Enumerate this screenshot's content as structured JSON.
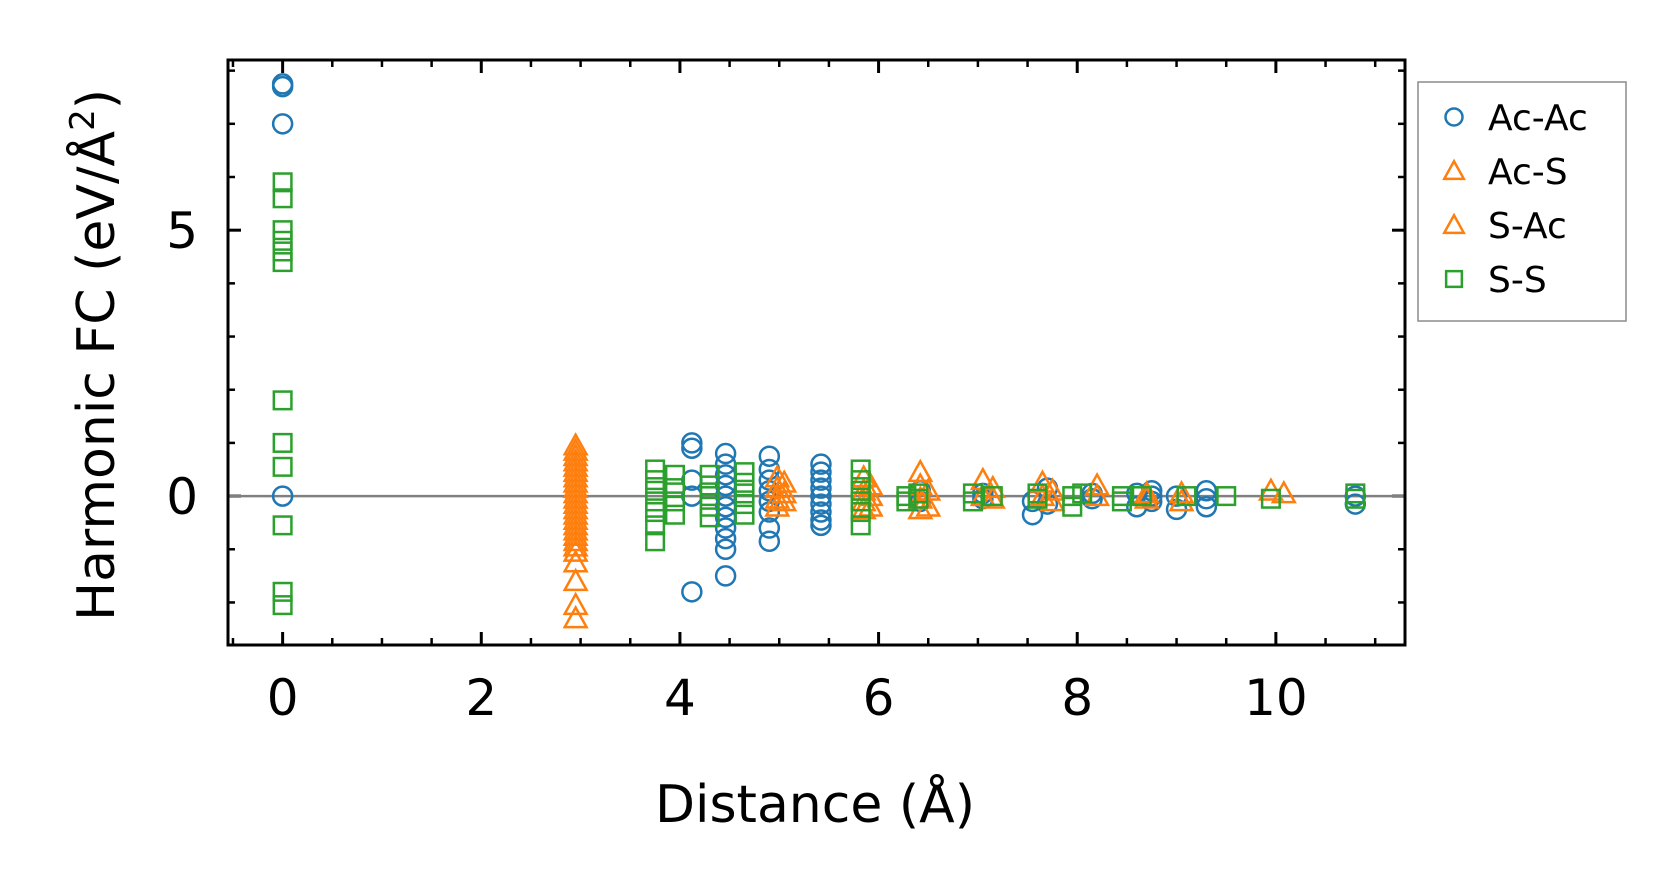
{
  "chart_data": {
    "type": "scatter",
    "title": "",
    "xlabel": "Distance (Å)",
    "ylabel": "Harmonic FC (eV/Å²)",
    "ylabel_main": "Harmonic FC (eV/Å",
    "ylabel_sup": "2",
    "ylabel_close": ")",
    "xlim": [
      -0.55,
      11.3
    ],
    "ylim": [
      -2.8,
      8.2
    ],
    "xticks": [
      0,
      2,
      4,
      6,
      8,
      10
    ],
    "xtick_labels": [
      "0",
      "2",
      "4",
      "6",
      "8",
      "10"
    ],
    "yticks": [
      0,
      5
    ],
    "ytick_labels": [
      "0",
      "5"
    ],
    "reference_line": 0,
    "legend_position": "outside-right-top",
    "series": [
      {
        "name": "Ac-Ac",
        "marker": "circle",
        "color": "#1f77b4",
        "points": [
          [
            0,
            7.75
          ],
          [
            0,
            7.7
          ],
          [
            0,
            7.0
          ],
          [
            0,
            0.0
          ],
          [
            4.12,
            1.0
          ],
          [
            4.12,
            0.9
          ],
          [
            4.12,
            0.3
          ],
          [
            4.12,
            0.0
          ],
          [
            4.12,
            -1.8
          ],
          [
            4.46,
            0.8
          ],
          [
            4.46,
            0.6
          ],
          [
            4.46,
            0.4
          ],
          [
            4.46,
            0.2
          ],
          [
            4.46,
            0.0
          ],
          [
            4.46,
            -0.2
          ],
          [
            4.46,
            -0.4
          ],
          [
            4.46,
            -0.6
          ],
          [
            4.46,
            -0.8
          ],
          [
            4.46,
            -1.0
          ],
          [
            4.46,
            -1.5
          ],
          [
            4.9,
            0.75
          ],
          [
            4.9,
            0.5
          ],
          [
            4.9,
            0.3
          ],
          [
            4.9,
            0.1
          ],
          [
            4.9,
            -0.1
          ],
          [
            4.9,
            -0.3
          ],
          [
            4.9,
            -0.6
          ],
          [
            4.9,
            -0.85
          ],
          [
            5.42,
            0.6
          ],
          [
            5.42,
            0.45
          ],
          [
            5.42,
            0.3
          ],
          [
            5.42,
            0.15
          ],
          [
            5.42,
            0.0
          ],
          [
            5.42,
            -0.15
          ],
          [
            5.42,
            -0.3
          ],
          [
            5.42,
            -0.45
          ],
          [
            5.42,
            -0.55
          ],
          [
            6.42,
            0.1
          ],
          [
            6.42,
            -0.1
          ],
          [
            7.05,
            0.05
          ],
          [
            7.05,
            -0.05
          ],
          [
            7.55,
            -0.1
          ],
          [
            7.55,
            -0.35
          ],
          [
            7.7,
            0.15
          ],
          [
            7.7,
            -0.15
          ],
          [
            8.15,
            0.05
          ],
          [
            8.15,
            -0.05
          ],
          [
            8.6,
            0.05
          ],
          [
            8.6,
            -0.2
          ],
          [
            8.75,
            0.1
          ],
          [
            8.75,
            0.0
          ],
          [
            8.75,
            -0.1
          ],
          [
            9.0,
            0.0
          ],
          [
            9.0,
            -0.25
          ],
          [
            9.3,
            0.1
          ],
          [
            9.3,
            -0.05
          ],
          [
            9.3,
            -0.2
          ],
          [
            10.8,
            0.0
          ],
          [
            10.8,
            -0.15
          ]
        ]
      },
      {
        "name": "Ac-S",
        "marker": "triangle",
        "color": "#ff7f0e",
        "points": [
          [
            2.95,
            0.95
          ],
          [
            2.95,
            0.75
          ],
          [
            2.95,
            0.55
          ],
          [
            2.95,
            0.35
          ],
          [
            2.95,
            0.15
          ],
          [
            2.95,
            -0.05
          ],
          [
            2.95,
            -0.25
          ],
          [
            2.95,
            -0.45
          ],
          [
            2.95,
            -0.65
          ],
          [
            2.95,
            -0.85
          ],
          [
            2.95,
            -1.05
          ],
          [
            2.95,
            -1.25
          ],
          [
            4.98,
            0.35
          ],
          [
            4.98,
            0.15
          ],
          [
            4.98,
            -0.05
          ],
          [
            4.98,
            -0.2
          ],
          [
            5.85,
            0.35
          ],
          [
            5.85,
            0.1
          ],
          [
            5.85,
            -0.1
          ],
          [
            5.85,
            -0.25
          ],
          [
            6.42,
            0.45
          ],
          [
            6.42,
            0.2
          ],
          [
            6.42,
            -0.05
          ],
          [
            6.42,
            -0.25
          ],
          [
            7.05,
            0.3
          ],
          [
            7.05,
            0.0
          ],
          [
            7.65,
            0.25
          ],
          [
            7.65,
            0.0
          ],
          [
            8.2,
            0.2
          ],
          [
            8.2,
            0.0
          ],
          [
            8.7,
            0.05
          ],
          [
            8.7,
            -0.05
          ],
          [
            9.95,
            0.1
          ],
          [
            10.08,
            0.05
          ]
        ]
      },
      {
        "name": "S-Ac",
        "marker": "triangle",
        "color": "#ff7f0e",
        "points": [
          [
            2.95,
            0.85
          ],
          [
            2.95,
            0.65
          ],
          [
            2.95,
            0.45
          ],
          [
            2.95,
            0.25
          ],
          [
            2.95,
            0.05
          ],
          [
            2.95,
            -0.15
          ],
          [
            2.95,
            -0.35
          ],
          [
            2.95,
            -0.55
          ],
          [
            2.95,
            -0.75
          ],
          [
            2.95,
            -0.95
          ],
          [
            2.95,
            -1.6
          ],
          [
            2.95,
            -2.05
          ],
          [
            2.95,
            -2.3
          ],
          [
            5.05,
            0.25
          ],
          [
            5.05,
            0.05
          ],
          [
            5.05,
            -0.1
          ],
          [
            5.92,
            0.2
          ],
          [
            5.92,
            0.0
          ],
          [
            5.92,
            -0.2
          ],
          [
            6.5,
            0.1
          ],
          [
            6.5,
            -0.2
          ],
          [
            7.15,
            0.15
          ],
          [
            7.15,
            -0.05
          ],
          [
            7.75,
            0.1
          ],
          [
            7.75,
            -0.1
          ],
          [
            9.05,
            0.05
          ],
          [
            9.05,
            -0.1
          ]
        ]
      },
      {
        "name": "S-S",
        "marker": "square",
        "color": "#2ca02c",
        "points": [
          [
            0,
            5.9
          ],
          [
            0,
            5.6
          ],
          [
            0,
            5.0
          ],
          [
            0,
            4.8
          ],
          [
            0,
            4.6
          ],
          [
            0,
            4.4
          ],
          [
            0,
            1.8
          ],
          [
            0,
            1.0
          ],
          [
            0,
            0.55
          ],
          [
            0,
            -0.55
          ],
          [
            0,
            -1.8
          ],
          [
            0,
            -2.05
          ],
          [
            3.75,
            0.5
          ],
          [
            3.75,
            0.3
          ],
          [
            3.75,
            0.1
          ],
          [
            3.75,
            -0.1
          ],
          [
            3.75,
            -0.3
          ],
          [
            3.75,
            -0.55
          ],
          [
            3.75,
            -0.85
          ],
          [
            3.95,
            0.4
          ],
          [
            3.95,
            0.15
          ],
          [
            3.95,
            -0.1
          ],
          [
            3.95,
            -0.35
          ],
          [
            4.3,
            0.4
          ],
          [
            4.3,
            0.2
          ],
          [
            4.3,
            0.0
          ],
          [
            4.3,
            -0.2
          ],
          [
            4.3,
            -0.4
          ],
          [
            4.65,
            0.45
          ],
          [
            4.65,
            0.25
          ],
          [
            4.65,
            0.05
          ],
          [
            4.65,
            -0.15
          ],
          [
            4.65,
            -0.35
          ],
          [
            5.82,
            0.5
          ],
          [
            5.82,
            0.3
          ],
          [
            5.82,
            0.1
          ],
          [
            5.82,
            -0.1
          ],
          [
            5.82,
            -0.3
          ],
          [
            5.82,
            -0.55
          ],
          [
            6.28,
            0.0
          ],
          [
            6.28,
            -0.1
          ],
          [
            6.4,
            0.05
          ],
          [
            6.4,
            -0.05
          ],
          [
            6.95,
            0.05
          ],
          [
            6.95,
            -0.1
          ],
          [
            7.15,
            0.0
          ],
          [
            7.6,
            0.05
          ],
          [
            7.6,
            -0.05
          ],
          [
            7.95,
            0.0
          ],
          [
            7.95,
            -0.2
          ],
          [
            8.05,
            0.05
          ],
          [
            8.45,
            0.0
          ],
          [
            8.45,
            -0.1
          ],
          [
            8.65,
            0.0
          ],
          [
            9.1,
            0.0
          ],
          [
            9.5,
            0.0
          ],
          [
            9.95,
            -0.05
          ],
          [
            10.8,
            0.05
          ],
          [
            10.8,
            -0.05
          ]
        ]
      }
    ]
  }
}
